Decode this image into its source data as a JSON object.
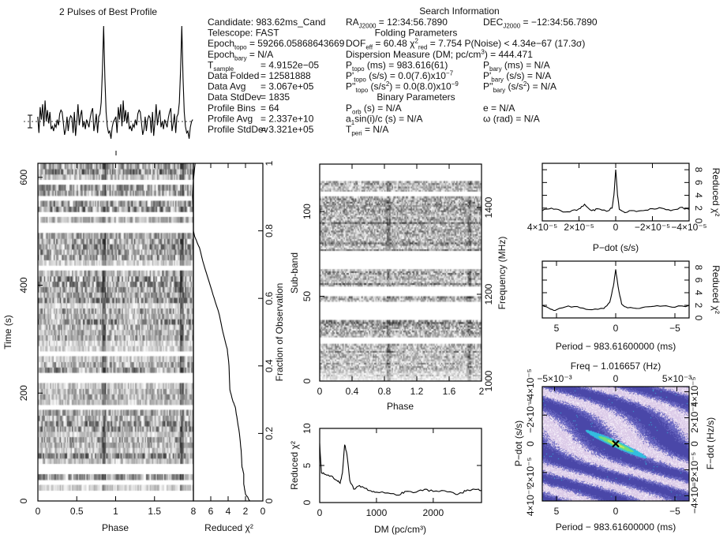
{
  "info": {
    "heading_search": "Search Information",
    "heading_folding": "Folding Parameters",
    "heading_binary": "Binary Parameters",
    "left": [
      {
        "segs": [
          {
            "t": "Candidate:  983.62ms_Cand"
          }
        ]
      },
      {
        "segs": [
          {
            "t": "Telescope:  FAST"
          }
        ]
      },
      {
        "segs": [
          {
            "t": "Epoch"
          },
          {
            "t": "topo",
            "s": "sub"
          },
          {
            "t": " = 59266.05868643669"
          }
        ]
      },
      {
        "segs": [
          {
            "t": "Epoch"
          },
          {
            "t": "bary",
            "s": "sub"
          },
          {
            "t": " = N/A"
          }
        ]
      },
      {
        "segs": [
          {
            "t": "T"
          },
          {
            "t": "sample",
            "s": "sub"
          }
        ],
        "value": "=  4.9152e−05"
      },
      {
        "segs": [
          {
            "t": "Data Folded"
          }
        ],
        "value": "=  12581888"
      },
      {
        "segs": [
          {
            "t": "Data Avg"
          }
        ],
        "value": "=  3.067e+05"
      },
      {
        "segs": [
          {
            "t": "Data StdDev"
          }
        ],
        "value": "=  1835"
      },
      {
        "segs": [
          {
            "t": "Profile Bins"
          }
        ],
        "value": "=  64"
      },
      {
        "segs": [
          {
            "t": "Profile Avg"
          }
        ],
        "value": "=  2.337e+10"
      },
      {
        "segs": [
          {
            "t": "Profile StdDev"
          }
        ],
        "value": "=  3.321e+05"
      }
    ],
    "middle": [
      {
        "segs": [
          {
            "t": "RA"
          },
          {
            "t": "J2000",
            "s": "sub"
          },
          {
            "t": " = 12:34:56.7890"
          }
        ]
      },
      {
        "heading": "folding"
      },
      {
        "segs": [
          {
            "t": "DOF"
          },
          {
            "t": "eff",
            "s": "sub"
          },
          {
            "t": " = 60.48  χ"
          },
          {
            "t": "2",
            "s": "sup"
          },
          {
            "t": "red",
            "s": "sub"
          },
          {
            "t": " = 7.754  P(Noise) < 4.34e−67   (17.3σ)"
          }
        ]
      },
      {
        "segs": [
          {
            "t": "Dispersion Measure (DM; pc/cm"
          },
          {
            "t": "3",
            "s": "sup"
          },
          {
            "t": ") = 444.471"
          }
        ]
      },
      {
        "segs": [
          {
            "t": "P"
          },
          {
            "t": "topo",
            "s": "sub"
          },
          {
            "t": " (ms) =  983.616(61)"
          }
        ]
      },
      {
        "segs": [
          {
            "t": "P'"
          },
          {
            "t": "topo",
            "s": "sub"
          },
          {
            "t": " (s/s) = 0.0(7.6)x10"
          },
          {
            "t": "−7",
            "s": "sup"
          }
        ]
      },
      {
        "segs": [
          {
            "t": "P''"
          },
          {
            "t": "topo",
            "s": "sub"
          },
          {
            "t": " (s/s"
          },
          {
            "t": "2",
            "s": "sup"
          },
          {
            "t": ") = 0.0(8.0)x10"
          },
          {
            "t": "−9",
            "s": "sup"
          }
        ]
      },
      {
        "heading": "binary"
      },
      {
        "segs": [
          {
            "t": "P"
          },
          {
            "t": "orb",
            "s": "sub"
          },
          {
            "t": " (s) = N/A"
          }
        ]
      },
      {
        "segs": [
          {
            "t": "a"
          },
          {
            "t": "1",
            "s": "sub"
          },
          {
            "t": "sin(i)/c (s) = N/A"
          }
        ]
      },
      {
        "segs": [
          {
            "t": "T"
          },
          {
            "t": "peri",
            "s": "sub"
          },
          {
            "t": " = N/A"
          }
        ]
      }
    ],
    "right": [
      {
        "segs": [
          {
            "t": "DEC"
          },
          {
            "t": "J2000",
            "s": "sub"
          },
          {
            "t": " = −12:34:56.7890"
          }
        ]
      },
      null,
      null,
      null,
      {
        "segs": [
          {
            "t": "P"
          },
          {
            "t": "bary",
            "s": "sub"
          },
          {
            "t": " (ms) = N/A"
          }
        ]
      },
      {
        "segs": [
          {
            "t": "P'"
          },
          {
            "t": "bary",
            "s": "sub"
          },
          {
            "t": " (s/s) = N/A"
          }
        ]
      },
      {
        "segs": [
          {
            "t": "P''"
          },
          {
            "t": "bary",
            "s": "sub"
          },
          {
            "t": " (s/s"
          },
          {
            "t": "2",
            "s": "sup"
          },
          {
            "t": ") = N/A"
          }
        ]
      },
      null,
      {
        "segs": [
          {
            "t": "e = N/A"
          }
        ]
      },
      {
        "segs": [
          {
            "t": "ω (rad) = N/A"
          }
        ]
      },
      null
    ]
  },
  "chart_data": [
    {
      "id": "profile",
      "type": "line",
      "title": "2 Pulses of Best Profile",
      "xlim": [
        0,
        2
      ],
      "pulses_shown": 2,
      "values": [
        0.05,
        -0.12,
        0.15,
        0.02,
        0.18,
        -0.05,
        0.22,
        0.0,
        0.12,
        -0.02,
        0.1,
        -0.08,
        -0.05,
        -0.1,
        -0.03,
        -0.06,
        0.02,
        -0.04,
        0.08,
        0.12,
        0.1,
        -0.02,
        -0.14,
        -0.08,
        0.05,
        -0.1,
        0.02,
        0.06,
        0.04,
        -0.12,
        0.1,
        -0.15,
        0.0,
        0.18,
        -0.04,
        0.06,
        0.12,
        -0.06,
        0.0,
        -0.08,
        0.02,
        -0.02,
        -0.06,
        0.04,
        0.1,
        0.14,
        -0.1,
        -0.02,
        0.08,
        -0.12,
        0.05,
        0.08,
        0.2,
        0.55,
        1.0,
        0.45,
        0.1,
        -0.05,
        -0.12,
        -0.1,
        -0.18,
        -0.06,
        0.0,
        0.02
      ]
    },
    {
      "id": "time-phase",
      "type": "heatmap",
      "colormap": "grayscale",
      "xlabel": "Phase",
      "ylabel": "Time (s)",
      "xlim": [
        0,
        2
      ],
      "ylim": [
        0,
        626
      ],
      "xticks": [
        0,
        0.5,
        1,
        1.5
      ],
      "xtick_labels": [
        "0",
        "0.5",
        "1",
        "1.5"
      ],
      "yticks": [
        0,
        200,
        400,
        600
      ],
      "ytick_labels": [
        "0",
        "200",
        "400",
        "600"
      ],
      "pulse_phase": 0.85,
      "blank_time_ranges": [
        [
          7,
          12
        ],
        [
          28,
          39
        ],
        [
          53,
          67
        ],
        [
          168,
          174
        ],
        [
          220,
          236
        ],
        [
          267,
          277
        ],
        [
          429,
          438
        ],
        [
          497,
          516
        ],
        [
          527,
          534
        ],
        [
          555,
          562
        ],
        [
          585,
          593
        ]
      ]
    },
    {
      "id": "chi2-vs-fraction",
      "type": "line",
      "xlabel": "Reduced χ²",
      "ylabel": "Fraction of Observation",
      "xlim": [
        8,
        0
      ],
      "ylim": [
        0,
        1
      ],
      "xticks": [
        8,
        6,
        4,
        2,
        0
      ],
      "xtick_labels": [
        "8",
        "6",
        "4",
        "2",
        "0"
      ],
      "yticks": [
        0,
        0.2,
        0.4,
        0.6,
        0.8,
        1
      ],
      "ytick_labels": [
        "0",
        "0.2",
        "0.4",
        "0.6",
        "0.8",
        "1"
      ],
      "points": [
        [
          1.5,
          0
        ],
        [
          2.0,
          0.02
        ],
        [
          2.2,
          0.05
        ],
        [
          2.2,
          0.08
        ],
        [
          2.4,
          0.1
        ],
        [
          2.5,
          0.15
        ],
        [
          2.7,
          0.2
        ],
        [
          3.0,
          0.25
        ],
        [
          3.2,
          0.28
        ],
        [
          3.5,
          0.3
        ],
        [
          3.8,
          0.33
        ],
        [
          3.9,
          0.4
        ],
        [
          4.1,
          0.45
        ],
        [
          4.6,
          0.5
        ],
        [
          5.0,
          0.55
        ],
        [
          5.6,
          0.6
        ],
        [
          6.2,
          0.65
        ],
        [
          6.8,
          0.7
        ],
        [
          7.3,
          0.75
        ],
        [
          7.8,
          0.78
        ],
        [
          8.0,
          0.8
        ],
        [
          8.0,
          0.85
        ],
        [
          8.1,
          0.9
        ],
        [
          8.0,
          0.95
        ],
        [
          7.8,
          1.0
        ]
      ]
    },
    {
      "id": "subband-phase",
      "type": "heatmap",
      "colormap": "grayscale",
      "xlabel": "Phase",
      "ylabel": "Sub-band",
      "y2label": "Frequency (MHz)",
      "xlim": [
        0,
        2
      ],
      "ylim": [
        0,
        128
      ],
      "y2lim": [
        1000,
        1500
      ],
      "xticks": [
        0,
        0.4,
        0.8,
        1.2,
        1.6,
        2
      ],
      "xtick_labels": [
        "0",
        "0.4",
        "0.8",
        "1.2",
        "1.6",
        "2"
      ],
      "yticks": [
        0,
        50,
        100
      ],
      "ytick_labels": [
        "0",
        "50",
        "100"
      ],
      "y2ticks": [
        1000,
        1200,
        1400
      ],
      "y2tick_labels": [
        "1000",
        "1200",
        "1400"
      ],
      "pulse_phase": 0.85,
      "blank_subband_ranges": [
        [
          22,
          26
        ],
        [
          36,
          47
        ],
        [
          50,
          56
        ],
        [
          66,
          77
        ],
        [
          109,
          112
        ],
        [
          118,
          128
        ]
      ]
    },
    {
      "id": "dm-curve",
      "type": "line",
      "xlabel": "DM (pc/cm³)",
      "ylabel": "Reduced χ²",
      "xlim": [
        0,
        2850
      ],
      "ylim": [
        0,
        10
      ],
      "xticks": [
        0,
        1000,
        2000
      ],
      "xtick_labels": [
        "0",
        "1000",
        "2000"
      ],
      "yticks": [
        0,
        5,
        10
      ],
      "ytick_labels": [
        "0",
        "5",
        "10"
      ],
      "points": [
        [
          0,
          8
        ],
        [
          30,
          4
        ],
        [
          100,
          3.8
        ],
        [
          200,
          3.6
        ],
        [
          300,
          3.0
        ],
        [
          360,
          2.6
        ],
        [
          400,
          4
        ],
        [
          440,
          7.8
        ],
        [
          480,
          6.5
        ],
        [
          530,
          3.0
        ],
        [
          600,
          1.8
        ],
        [
          700,
          2.3
        ],
        [
          800,
          1.9
        ],
        [
          900,
          1.6
        ],
        [
          1000,
          1.4
        ],
        [
          1200,
          1.3
        ],
        [
          1400,
          1.0
        ],
        [
          1500,
          1.5
        ],
        [
          1700,
          1.4
        ],
        [
          1850,
          1.8
        ],
        [
          2000,
          1.5
        ],
        [
          2200,
          1.6
        ],
        [
          2400,
          1.1
        ],
        [
          2500,
          1.3
        ],
        [
          2600,
          1.7
        ],
        [
          2800,
          1.8
        ],
        [
          2850,
          1.6
        ]
      ]
    },
    {
      "id": "pdot-curve",
      "type": "line",
      "xlabel": "P−dot (s/s)",
      "ylabel": "Reduced χ²",
      "xlim": [
        4e-05,
        -4e-05
      ],
      "ylim": [
        0,
        9
      ],
      "xticks": [
        4e-05,
        2e-05,
        0,
        -2e-05,
        -4e-05
      ],
      "xtick_labels": [
        "4×10⁻⁵",
        "2×10⁻⁵",
        "0",
        "−2×10⁻⁵",
        "−4×10⁻⁵"
      ],
      "yticks": [
        0,
        2,
        4,
        6,
        8
      ],
      "ytick_labels": [
        "0",
        "2",
        "4",
        "6",
        "8"
      ],
      "points": [
        [
          4e-05,
          1.6
        ],
        [
          3.5e-05,
          2.0
        ],
        [
          3e-05,
          1.6
        ],
        [
          2.5e-05,
          1.4
        ],
        [
          2e-05,
          1.9
        ],
        [
          1.7e-05,
          2.6
        ],
        [
          1.3e-05,
          1.6
        ],
        [
          1e-05,
          1.9
        ],
        [
          5e-06,
          1.5
        ],
        [
          2e-06,
          2.0
        ],
        [
          1e-06,
          4
        ],
        [
          0,
          8.0
        ],
        [
          -1e-06,
          4
        ],
        [
          -2e-06,
          1.8
        ],
        [
          -5e-06,
          1.3
        ],
        [
          -1e-05,
          1.6
        ],
        [
          -1.5e-05,
          1.6
        ],
        [
          -2e-05,
          1.9
        ],
        [
          -2.5e-05,
          2.0
        ],
        [
          -3e-05,
          1.6
        ],
        [
          -3.5e-05,
          2.1
        ],
        [
          -4e-05,
          1.8
        ]
      ]
    },
    {
      "id": "period-curve",
      "type": "line",
      "xlabel": "Period − 983.61600000 (ms)",
      "ylabel": "Reduced χ²",
      "xlim": [
        6.2,
        -6.2
      ],
      "ylim": [
        0,
        9
      ],
      "xticks": [
        5,
        0,
        -5
      ],
      "xtick_labels": [
        "5",
        "0",
        "−5"
      ],
      "yticks": [
        0,
        2,
        4,
        6,
        8
      ],
      "ytick_labels": [
        "0",
        "2",
        "4",
        "6",
        "8"
      ],
      "points": [
        [
          6.2,
          2.0
        ],
        [
          5.5,
          1.4
        ],
        [
          5,
          1.3
        ],
        [
          4,
          1.9
        ],
        [
          3,
          1.6
        ],
        [
          2,
          1.3
        ],
        [
          1,
          1.5
        ],
        [
          0.5,
          2.5
        ],
        [
          0.2,
          5
        ],
        [
          0,
          7.7
        ],
        [
          -0.2,
          5
        ],
        [
          -0.5,
          2.2
        ],
        [
          -1,
          1.6
        ],
        [
          -2,
          1.5
        ],
        [
          -3,
          1.8
        ],
        [
          -4,
          1.9
        ],
        [
          -5,
          1.7
        ],
        [
          -6.2,
          2.0
        ]
      ]
    },
    {
      "id": "period-pdot-plane",
      "type": "heatmap",
      "colormap": "purple-cyan-yellow",
      "xlabel": "Period − 983.61600000 (ms)",
      "ylabel": "P−dot (s/s)",
      "x2label": "Freq − 1.016657 (Hz)",
      "y2label": "F−dot (Hz/s)",
      "xlim": [
        6.2,
        -6.2
      ],
      "ylim": [
        4e-05,
        -4e-05
      ],
      "xticks": [
        5,
        0,
        -5
      ],
      "xtick_labels": [
        "5",
        "0",
        "−5"
      ],
      "yticks": [
        4e-05,
        2e-05,
        0,
        -2e-05,
        -4e-05
      ],
      "ytick_labels": [
        "4×10⁻⁵",
        "2×10⁻⁵",
        "0",
        "−2×10⁻⁵",
        "−4×10⁻⁵"
      ],
      "x2lim": [
        -0.006,
        0.006
      ],
      "x2ticks": [
        -0.005,
        0,
        0.005
      ],
      "x2tick_labels": [
        "−5×10⁻³",
        "0",
        "5×10⁻³"
      ],
      "y2lim": [
        -4.4e-05,
        4.4e-05
      ],
      "y2ticks": [
        -4e-05,
        -2e-05,
        0,
        2e-05,
        4e-05
      ],
      "y2tick_labels": [
        "−4×10⁻⁵",
        "−2×10⁻⁵",
        "0",
        "2×10⁻⁵",
        "4×10⁻⁵"
      ],
      "colors": {
        "low": "#4a47a8",
        "mid": "#6b69c2",
        "high": "#dccbe8",
        "peak1": "#33bde0",
        "peak2": "#6fe07a",
        "peak3": "#e8e84a",
        "best": "#000000"
      }
    }
  ]
}
